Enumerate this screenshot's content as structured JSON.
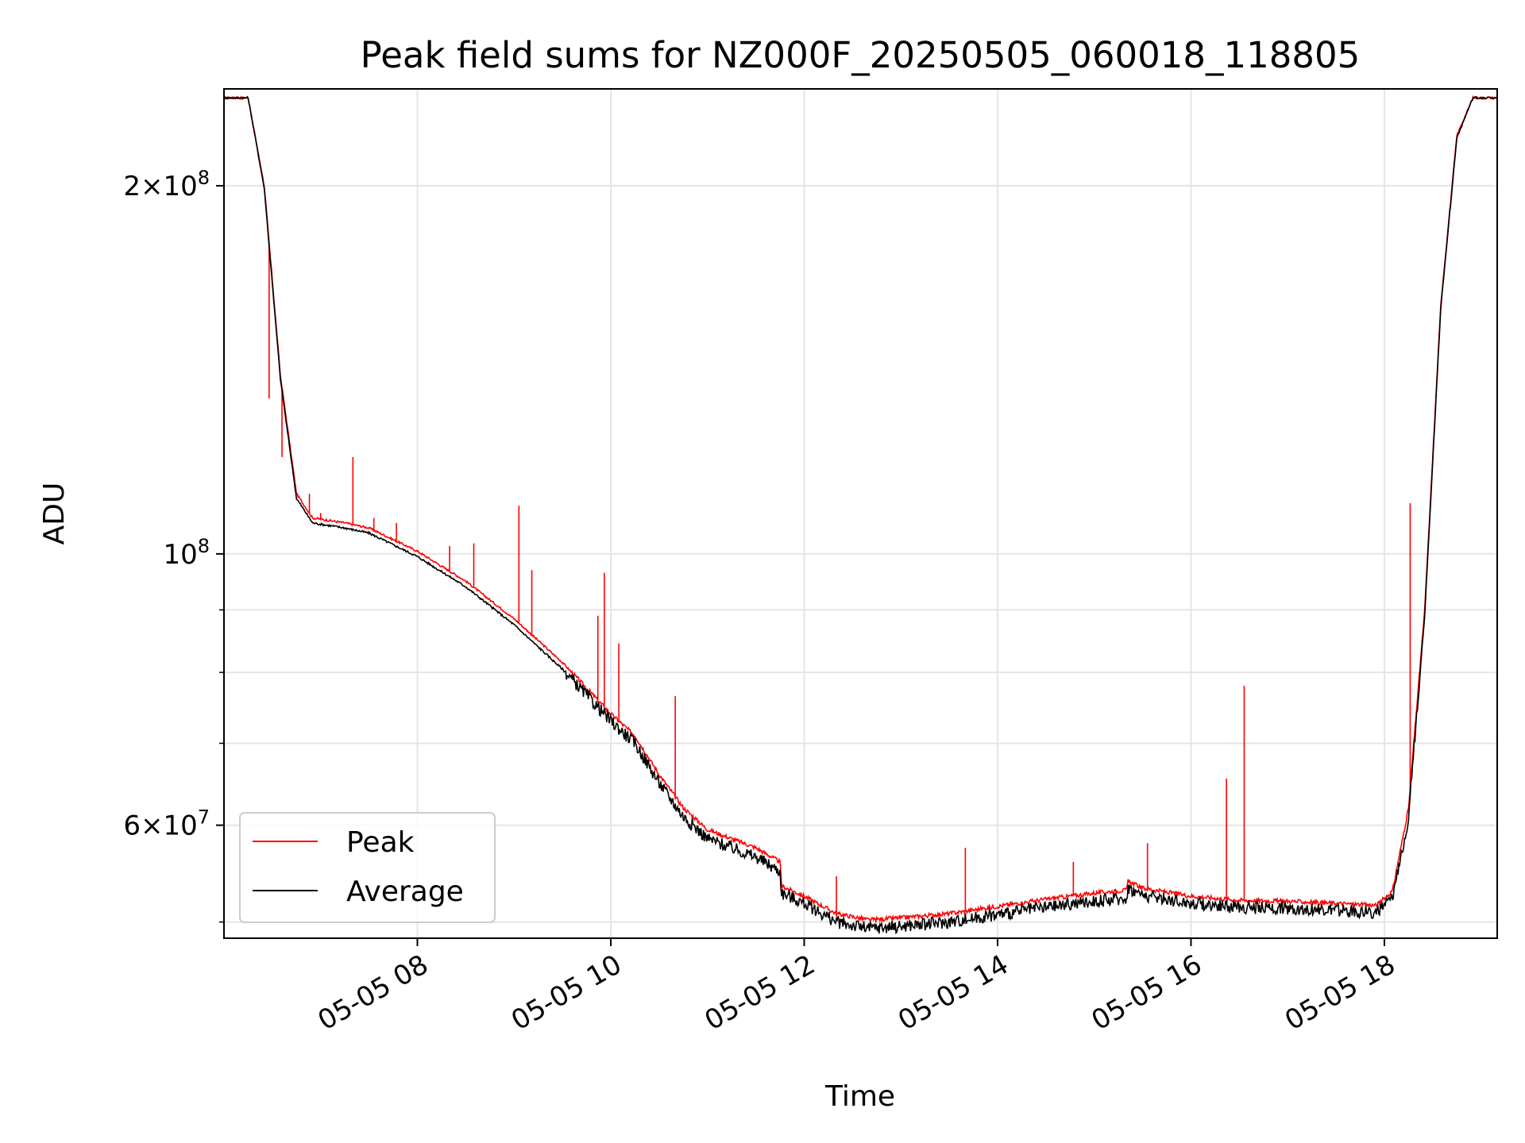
{
  "chart_data": {
    "type": "line",
    "title": "Peak field sums for NZ000F_20250505_060018_118805",
    "xlabel": "Time",
    "ylabel": "ADU",
    "y_scale": "log",
    "ylim": [
      48500000,
      240000000
    ],
    "xlim": [
      "2025-05-05 06:00",
      "2025-05-05 19:10"
    ],
    "grid": true,
    "legend_position": "lower-left",
    "x_tick_labels": [
      "05-05 08",
      "05-05 10",
      "05-05 12",
      "05-05 14",
      "05-05 16",
      "05-05 18"
    ],
    "x_tick_values": [
      "2025-05-05 08:00",
      "2025-05-05 10:00",
      "2025-05-05 12:00",
      "2025-05-05 14:00",
      "2025-05-05 16:00",
      "2025-05-05 18:00"
    ],
    "y_tick_labels": [
      {
        "value": 200000000,
        "mantissa": "2",
        "exponent": "8"
      },
      {
        "value": 100000000,
        "mantissa": "",
        "exponent": "8"
      },
      {
        "value": 60000000,
        "mantissa": "6",
        "exponent": "7"
      }
    ],
    "y_minor_ticks": [
      50000000,
      70000000,
      80000000,
      90000000
    ],
    "series": [
      {
        "name": "Peak",
        "color": "#ff0000",
        "x": [
          "2025-05-05 06:00",
          "2025-05-05 06:15",
          "2025-05-05 06:25",
          "2025-05-05 06:35",
          "2025-05-05 06:45",
          "2025-05-05 06:55",
          "2025-05-05 07:05",
          "2025-05-05 07:15",
          "2025-05-05 07:30",
          "2025-05-05 08:00",
          "2025-05-05 08:30",
          "2025-05-05 09:00",
          "2025-05-05 09:30",
          "2025-05-05 10:00",
          "2025-05-05 10:15",
          "2025-05-05 10:30",
          "2025-05-05 10:45",
          "2025-05-05 11:00",
          "2025-05-05 11:30",
          "2025-05-05 11:45",
          "2025-05-05 11:46",
          "2025-05-05 12:00",
          "2025-05-05 12:20",
          "2025-05-05 12:40",
          "2025-05-05 13:00",
          "2025-05-05 13:30",
          "2025-05-05 14:00",
          "2025-05-05 14:30",
          "2025-05-05 15:00",
          "2025-05-05 15:20",
          "2025-05-05 15:21",
          "2025-05-05 15:30",
          "2025-05-05 16:00",
          "2025-05-05 16:30",
          "2025-05-05 17:00",
          "2025-05-05 17:30",
          "2025-05-05 17:55",
          "2025-05-05 18:05",
          "2025-05-05 18:15",
          "2025-05-05 18:25",
          "2025-05-05 18:35",
          "2025-05-05 18:45",
          "2025-05-05 18:55",
          "2025-05-05 19:10"
        ],
        "y": [
          236000000,
          236000000,
          200000000,
          140000000,
          112000000,
          107000000,
          106500000,
          106000000,
          105000000,
          100500000,
          95000000,
          88500000,
          81500000,
          74000000,
          71000000,
          66000000,
          62000000,
          59500000,
          57500000,
          56000000,
          53500000,
          52500000,
          50800000,
          50200000,
          50400000,
          50800000,
          51500000,
          52200000,
          52800000,
          53100000,
          54000000,
          53300000,
          52500000,
          52100000,
          52000000,
          51800000,
          51600000,
          53000000,
          62000000,
          90000000,
          160000000,
          220000000,
          236000000,
          236000000
        ],
        "spikes": [
          {
            "x": "2025-05-05 06:28",
            "y": 134000000
          },
          {
            "x": "2025-05-05 06:36",
            "y": 120000000
          },
          {
            "x": "2025-05-05 06:53",
            "y": 112000000
          },
          {
            "x": "2025-05-05 07:00",
            "y": 108000000
          },
          {
            "x": "2025-05-05 07:20",
            "y": 120000000
          },
          {
            "x": "2025-05-05 07:33",
            "y": 107000000
          },
          {
            "x": "2025-05-05 07:47",
            "y": 106000000
          },
          {
            "x": "2025-05-05 08:20",
            "y": 101500000
          },
          {
            "x": "2025-05-05 08:35",
            "y": 102000000
          },
          {
            "x": "2025-05-05 09:03",
            "y": 109500000
          },
          {
            "x": "2025-05-05 09:11",
            "y": 97000000
          },
          {
            "x": "2025-05-05 09:52",
            "y": 89000000
          },
          {
            "x": "2025-05-05 09:56",
            "y": 96500000
          },
          {
            "x": "2025-05-05 10:05",
            "y": 84500000
          },
          {
            "x": "2025-05-05 10:40",
            "y": 76500000
          },
          {
            "x": "2025-05-05 12:20",
            "y": 54500000
          },
          {
            "x": "2025-05-05 13:40",
            "y": 57500000
          },
          {
            "x": "2025-05-05 14:47",
            "y": 56000000
          },
          {
            "x": "2025-05-05 15:33",
            "y": 58000000
          },
          {
            "x": "2025-05-05 16:22",
            "y": 65500000
          },
          {
            "x": "2025-05-05 16:33",
            "y": 78000000
          },
          {
            "x": "2025-05-05 18:16",
            "y": 110000000
          }
        ]
      },
      {
        "name": "Average",
        "color": "#000000",
        "x": [
          "2025-05-05 06:00",
          "2025-05-05 06:15",
          "2025-05-05 06:25",
          "2025-05-05 06:35",
          "2025-05-05 06:45",
          "2025-05-05 06:55",
          "2025-05-05 07:05",
          "2025-05-05 07:15",
          "2025-05-05 07:30",
          "2025-05-05 08:00",
          "2025-05-05 08:30",
          "2025-05-05 09:00",
          "2025-05-05 09:30",
          "2025-05-05 10:00",
          "2025-05-05 10:15",
          "2025-05-05 10:30",
          "2025-05-05 10:45",
          "2025-05-05 11:00",
          "2025-05-05 11:30",
          "2025-05-05 11:45",
          "2025-05-05 11:46",
          "2025-05-05 12:00",
          "2025-05-05 12:20",
          "2025-05-05 12:40",
          "2025-05-05 13:00",
          "2025-05-05 13:30",
          "2025-05-05 14:00",
          "2025-05-05 14:30",
          "2025-05-05 15:00",
          "2025-05-05 15:20",
          "2025-05-05 15:21",
          "2025-05-05 15:30",
          "2025-05-05 16:00",
          "2025-05-05 16:30",
          "2025-05-05 17:00",
          "2025-05-05 17:30",
          "2025-05-05 17:55",
          "2025-05-05 18:05",
          "2025-05-05 18:15",
          "2025-05-05 18:25",
          "2025-05-05 18:35",
          "2025-05-05 18:45",
          "2025-05-05 18:55",
          "2025-05-05 19:10"
        ],
        "y": [
          236000000,
          236000000,
          199000000,
          139000000,
          111000000,
          106000000,
          105500000,
          105000000,
          104000000,
          99500000,
          94000000,
          87500000,
          80500000,
          73000000,
          70000000,
          65000000,
          61000000,
          58500000,
          56500000,
          55000000,
          52800000,
          51800000,
          50000000,
          49400000,
          49600000,
          50000000,
          50700000,
          51400000,
          52000000,
          52300000,
          53300000,
          52600000,
          51800000,
          51400000,
          51300000,
          51100000,
          50900000,
          52200000,
          61000000,
          89000000,
          159000000,
          219000000,
          236000000,
          236000000
        ],
        "noise": 0.012
      }
    ]
  }
}
